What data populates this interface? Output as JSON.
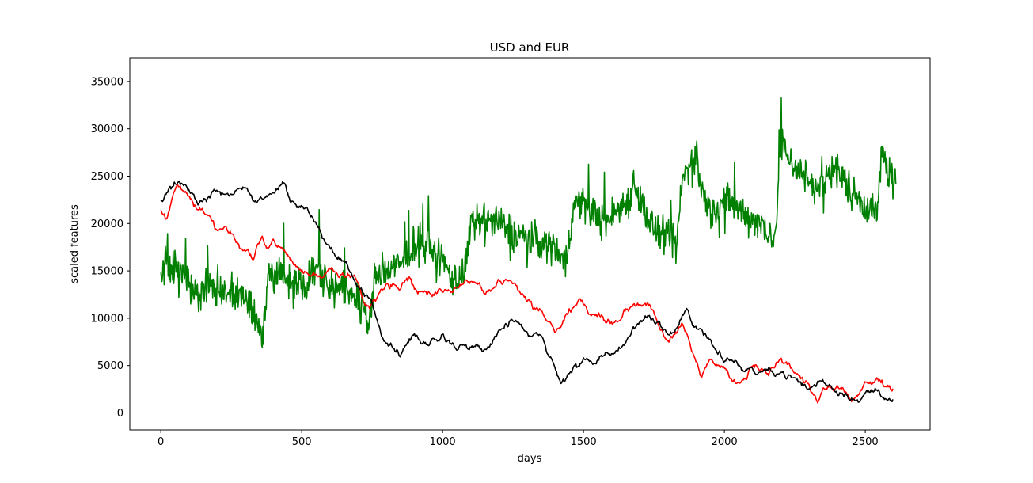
{
  "chart_data": {
    "type": "line",
    "title": "USD and EUR",
    "xlabel": "days",
    "ylabel": "scaled features",
    "xlim": [
      -110,
      2730
    ],
    "ylim": [
      -1800,
      37500
    ],
    "xticks": [
      0,
      500,
      1000,
      1500,
      2000,
      2500
    ],
    "yticks": [
      0,
      5000,
      10000,
      15000,
      20000,
      25000,
      30000,
      35000
    ],
    "grid": false,
    "legend": "none",
    "series": [
      {
        "color": "#008000",
        "style": "noisy",
        "x": [
          0,
          20,
          50,
          80,
          110,
          140,
          170,
          200,
          250,
          300,
          340,
          360,
          380,
          420,
          470,
          520,
          560,
          600,
          640,
          680,
          720,
          740,
          760,
          800,
          850,
          900,
          950,
          1000,
          1040,
          1080,
          1100,
          1150,
          1200,
          1250,
          1300,
          1350,
          1400,
          1440,
          1460,
          1480,
          1520,
          1580,
          1620,
          1660,
          1680,
          1720,
          1760,
          1800,
          1830,
          1850,
          1880,
          1900,
          1920,
          1950,
          2000,
          2050,
          2100,
          2150,
          2180,
          2200,
          2250,
          2300,
          2350,
          2380,
          2400,
          2450,
          2500,
          2540,
          2560,
          2590,
          2610
        ],
        "y": [
          14000,
          16000,
          15000,
          14500,
          13000,
          12500,
          13500,
          12500,
          13000,
          12000,
          10000,
          8500,
          14000,
          15000,
          13500,
          14000,
          15500,
          13500,
          13000,
          12500,
          11000,
          9000,
          14500,
          15000,
          15500,
          18000,
          17500,
          16000,
          14000,
          15000,
          19500,
          20500,
          20000,
          19000,
          18500,
          18000,
          17500,
          16000,
          21000,
          22500,
          21500,
          20000,
          21500,
          22500,
          24500,
          21000,
          19000,
          18500,
          17500,
          24500,
          26500,
          27000,
          23500,
          21000,
          22500,
          21500,
          20500,
          19500,
          18000,
          28500,
          26000,
          24500,
          23500,
          26500,
          25500,
          23500,
          22000,
          21000,
          27500,
          25000,
          24000
        ]
      },
      {
        "color": "#ff0000",
        "style": "walk",
        "x": [
          0,
          20,
          40,
          60,
          80,
          100,
          130,
          160,
          180,
          200,
          250,
          300,
          330,
          360,
          380,
          400,
          440,
          480,
          520,
          560,
          600,
          640,
          680,
          700,
          720,
          740,
          760,
          800,
          850,
          880,
          900,
          950,
          1000,
          1050,
          1100,
          1150,
          1200,
          1250,
          1300,
          1350,
          1380,
          1400,
          1420,
          1450,
          1480,
          1500,
          1550,
          1600,
          1650,
          1700,
          1740,
          1780,
          1800,
          1830,
          1850,
          1870,
          1900,
          1920,
          1950,
          1980,
          2000,
          2050,
          2100,
          2150,
          2200,
          2250,
          2300,
          2330,
          2350,
          2400,
          2450,
          2480,
          2500,
          2550,
          2600
        ],
        "y": [
          21500,
          20500,
          22500,
          24000,
          23500,
          23000,
          21500,
          21000,
          20500,
          19500,
          19000,
          17000,
          16500,
          18500,
          17500,
          18000,
          17000,
          15500,
          14500,
          14500,
          15000,
          14500,
          14500,
          13500,
          12000,
          11500,
          12000,
          14000,
          13500,
          14000,
          12500,
          12500,
          13000,
          13500,
          14500,
          12500,
          14000,
          13500,
          12000,
          10500,
          9500,
          8500,
          9000,
          11000,
          12000,
          11500,
          10500,
          9500,
          11000,
          11500,
          11000,
          8500,
          7500,
          8500,
          9500,
          8500,
          6000,
          4000,
          5000,
          4500,
          5000,
          3000,
          4500,
          4500,
          5000,
          4000,
          3000,
          1500,
          2500,
          2500,
          1500,
          2000,
          2500,
          3500,
          2800
        ]
      },
      {
        "color": "#000000",
        "style": "walk",
        "x": [
          0,
          20,
          40,
          60,
          80,
          100,
          130,
          160,
          200,
          250,
          300,
          330,
          360,
          400,
          440,
          460,
          500,
          540,
          580,
          620,
          660,
          700,
          720,
          740,
          780,
          800,
          850,
          900,
          950,
          1000,
          1050,
          1100,
          1150,
          1200,
          1250,
          1280,
          1300,
          1330,
          1360,
          1400,
          1420,
          1450,
          1500,
          1550,
          1600,
          1650,
          1680,
          1720,
          1760,
          1780,
          1800,
          1830,
          1850,
          1870,
          1900,
          1950,
          2000,
          2050,
          2100,
          2150,
          2200,
          2250,
          2300,
          2350,
          2400,
          2450,
          2480,
          2500,
          2550,
          2600
        ],
        "y": [
          22500,
          23000,
          23500,
          24500,
          24000,
          23500,
          22000,
          22500,
          23000,
          23000,
          24000,
          22500,
          22500,
          23500,
          24000,
          22500,
          22000,
          20500,
          18500,
          17000,
          15500,
          13500,
          12500,
          12000,
          8500,
          7500,
          6500,
          8500,
          7000,
          8500,
          6500,
          7500,
          7000,
          8500,
          9500,
          9000,
          8500,
          8000,
          7500,
          5000,
          3000,
          4000,
          5500,
          5500,
          6000,
          7500,
          9000,
          10500,
          9500,
          8500,
          8000,
          8500,
          10000,
          11000,
          9000,
          8000,
          6000,
          5000,
          4500,
          4500,
          4500,
          3500,
          2500,
          3500,
          2500,
          2000,
          1000,
          2000,
          2500,
          1000
        ]
      }
    ]
  }
}
